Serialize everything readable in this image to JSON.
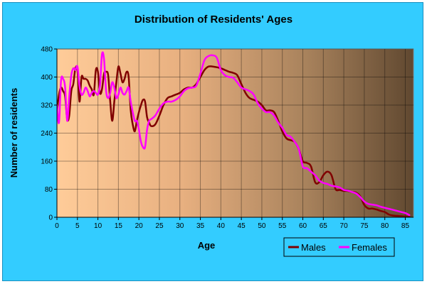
{
  "chart_data": {
    "type": "line",
    "title": "Distribution of Residents' Ages",
    "xlabel": "Age",
    "ylabel": "Number of residents",
    "xlim": [
      0,
      87
    ],
    "ylim": [
      0,
      480
    ],
    "x_ticks": [
      "0",
      "5",
      "10",
      "15",
      "20",
      "25",
      "30",
      "35",
      "40",
      "45",
      "50",
      "55",
      "60",
      "65",
      "70",
      "75",
      "80",
      "85"
    ],
    "y_ticks": [
      "0",
      "80",
      "160",
      "240",
      "320",
      "400",
      "480"
    ],
    "grid": true,
    "legend_position": "bottom-right",
    "series": [
      {
        "name": "Males",
        "color": "#800000",
        "points": [
          [
            0,
            300
          ],
          [
            0.5,
            350
          ],
          [
            1,
            370
          ],
          [
            1.5,
            360
          ],
          [
            2,
            345
          ],
          [
            2.5,
            280
          ],
          [
            3,
            290
          ],
          [
            3.5,
            360
          ],
          [
            4,
            380
          ],
          [
            4.5,
            425
          ],
          [
            5,
            420
          ],
          [
            5.5,
            330
          ],
          [
            6,
            400
          ],
          [
            6.5,
            395
          ],
          [
            7,
            395
          ],
          [
            7.5,
            390
          ],
          [
            8,
            375
          ],
          [
            8.5,
            365
          ],
          [
            9,
            350
          ],
          [
            9.5,
            420
          ],
          [
            10,
            415
          ],
          [
            10.5,
            355
          ],
          [
            11,
            365
          ],
          [
            11.5,
            410
          ],
          [
            12,
            415
          ],
          [
            12.5,
            405
          ],
          [
            13,
            330
          ],
          [
            13.5,
            275
          ],
          [
            14,
            330
          ],
          [
            14.5,
            385
          ],
          [
            15,
            430
          ],
          [
            15.5,
            410
          ],
          [
            16,
            385
          ],
          [
            16.5,
            395
          ],
          [
            17,
            415
          ],
          [
            17.5,
            400
          ],
          [
            18,
            305
          ],
          [
            18.5,
            265
          ],
          [
            19,
            245
          ],
          [
            19.5,
            275
          ],
          [
            20,
            300
          ],
          [
            20.5,
            320
          ],
          [
            21,
            335
          ],
          [
            21.5,
            330
          ],
          [
            22,
            285
          ],
          [
            22.5,
            270
          ],
          [
            23,
            260
          ],
          [
            24,
            265
          ],
          [
            25,
            290
          ],
          [
            26,
            320
          ],
          [
            27,
            340
          ],
          [
            28,
            345
          ],
          [
            29,
            350
          ],
          [
            30,
            355
          ],
          [
            31,
            365
          ],
          [
            32,
            370
          ],
          [
            33,
            370
          ],
          [
            34,
            380
          ],
          [
            35,
            400
          ],
          [
            36,
            420
          ],
          [
            37,
            430
          ],
          [
            38,
            430
          ],
          [
            39,
            428
          ],
          [
            40,
            425
          ],
          [
            41,
            420
          ],
          [
            42,
            415
          ],
          [
            43,
            412
          ],
          [
            44,
            405
          ],
          [
            45,
            380
          ],
          [
            46,
            355
          ],
          [
            47,
            340
          ],
          [
            48,
            335
          ],
          [
            49,
            330
          ],
          [
            50,
            320
          ],
          [
            51,
            305
          ],
          [
            52,
            305
          ],
          [
            53,
            300
          ],
          [
            54,
            275
          ],
          [
            55,
            245
          ],
          [
            56,
            225
          ],
          [
            57,
            220
          ],
          [
            58,
            215
          ],
          [
            59,
            195
          ],
          [
            60,
            160
          ],
          [
            61,
            155
          ],
          [
            62,
            145
          ],
          [
            63,
            100
          ],
          [
            64,
            100
          ],
          [
            65,
            120
          ],
          [
            66,
            130
          ],
          [
            67,
            120
          ],
          [
            68,
            80
          ],
          [
            69,
            78
          ],
          [
            70,
            75
          ],
          [
            71,
            75
          ],
          [
            72,
            72
          ],
          [
            73,
            70
          ],
          [
            74,
            60
          ],
          [
            75,
            35
          ],
          [
            76,
            25
          ],
          [
            77,
            25
          ],
          [
            78,
            22
          ],
          [
            79,
            18
          ],
          [
            80,
            15
          ],
          [
            81,
            8
          ],
          [
            82,
            5
          ],
          [
            83,
            4
          ],
          [
            84,
            3
          ],
          [
            85,
            2
          ],
          [
            86,
            1
          ]
        ]
      },
      {
        "name": "Females",
        "color": "#ff00ff",
        "points": [
          [
            0,
            320
          ],
          [
            0.5,
            270
          ],
          [
            1,
            390
          ],
          [
            1.5,
            395
          ],
          [
            2,
            370
          ],
          [
            2.5,
            275
          ],
          [
            3,
            345
          ],
          [
            3.5,
            405
          ],
          [
            4,
            425
          ],
          [
            4.5,
            420
          ],
          [
            5,
            430
          ],
          [
            5.5,
            375
          ],
          [
            6,
            350
          ],
          [
            6.5,
            355
          ],
          [
            7,
            370
          ],
          [
            7.5,
            360
          ],
          [
            8,
            345
          ],
          [
            8.5,
            355
          ],
          [
            9,
            360
          ],
          [
            9.5,
            355
          ],
          [
            10,
            350
          ],
          [
            10.5,
            375
          ],
          [
            11,
            465
          ],
          [
            11.5,
            450
          ],
          [
            12,
            360
          ],
          [
            12.5,
            340
          ],
          [
            13,
            355
          ],
          [
            13.5,
            385
          ],
          [
            14,
            370
          ],
          [
            14.5,
            340
          ],
          [
            15,
            350
          ],
          [
            15.5,
            370
          ],
          [
            16,
            355
          ],
          [
            16.5,
            350
          ],
          [
            17,
            360
          ],
          [
            17.5,
            370
          ],
          [
            18,
            330
          ],
          [
            18.5,
            300
          ],
          [
            19,
            275
          ],
          [
            19.5,
            275
          ],
          [
            20,
            250
          ],
          [
            20.5,
            215
          ],
          [
            21,
            200
          ],
          [
            21.5,
            200
          ],
          [
            22,
            250
          ],
          [
            22.5,
            275
          ],
          [
            23,
            280
          ],
          [
            24,
            290
          ],
          [
            25,
            310
          ],
          [
            26,
            325
          ],
          [
            27,
            330
          ],
          [
            28,
            330
          ],
          [
            29,
            335
          ],
          [
            30,
            345
          ],
          [
            31,
            360
          ],
          [
            32,
            368
          ],
          [
            33,
            370
          ],
          [
            34,
            375
          ],
          [
            35,
            410
          ],
          [
            36,
            448
          ],
          [
            37,
            460
          ],
          [
            38,
            462
          ],
          [
            39,
            455
          ],
          [
            40,
            420
          ],
          [
            41,
            405
          ],
          [
            42,
            400
          ],
          [
            43,
            398
          ],
          [
            44,
            385
          ],
          [
            45,
            370
          ],
          [
            46,
            365
          ],
          [
            47,
            360
          ],
          [
            48,
            350
          ],
          [
            49,
            325
          ],
          [
            50,
            310
          ],
          [
            51,
            300
          ],
          [
            52,
            300
          ],
          [
            53,
            290
          ],
          [
            54,
            270
          ],
          [
            55,
            255
          ],
          [
            56,
            235
          ],
          [
            57,
            230
          ],
          [
            58,
            215
          ],
          [
            59,
            195
          ],
          [
            60,
            145
          ],
          [
            61,
            140
          ],
          [
            62,
            130
          ],
          [
            63,
            120
          ],
          [
            64,
            105
          ],
          [
            65,
            98
          ],
          [
            66,
            95
          ],
          [
            67,
            90
          ],
          [
            68,
            88
          ],
          [
            69,
            85
          ],
          [
            70,
            78
          ],
          [
            71,
            76
          ],
          [
            72,
            72
          ],
          [
            73,
            68
          ],
          [
            74,
            58
          ],
          [
            75,
            45
          ],
          [
            76,
            38
          ],
          [
            77,
            36
          ],
          [
            78,
            34
          ],
          [
            79,
            30
          ],
          [
            80,
            27
          ],
          [
            81,
            24
          ],
          [
            82,
            21
          ],
          [
            83,
            18
          ],
          [
            84,
            15
          ],
          [
            85,
            12
          ],
          [
            86,
            6
          ]
        ]
      }
    ]
  }
}
